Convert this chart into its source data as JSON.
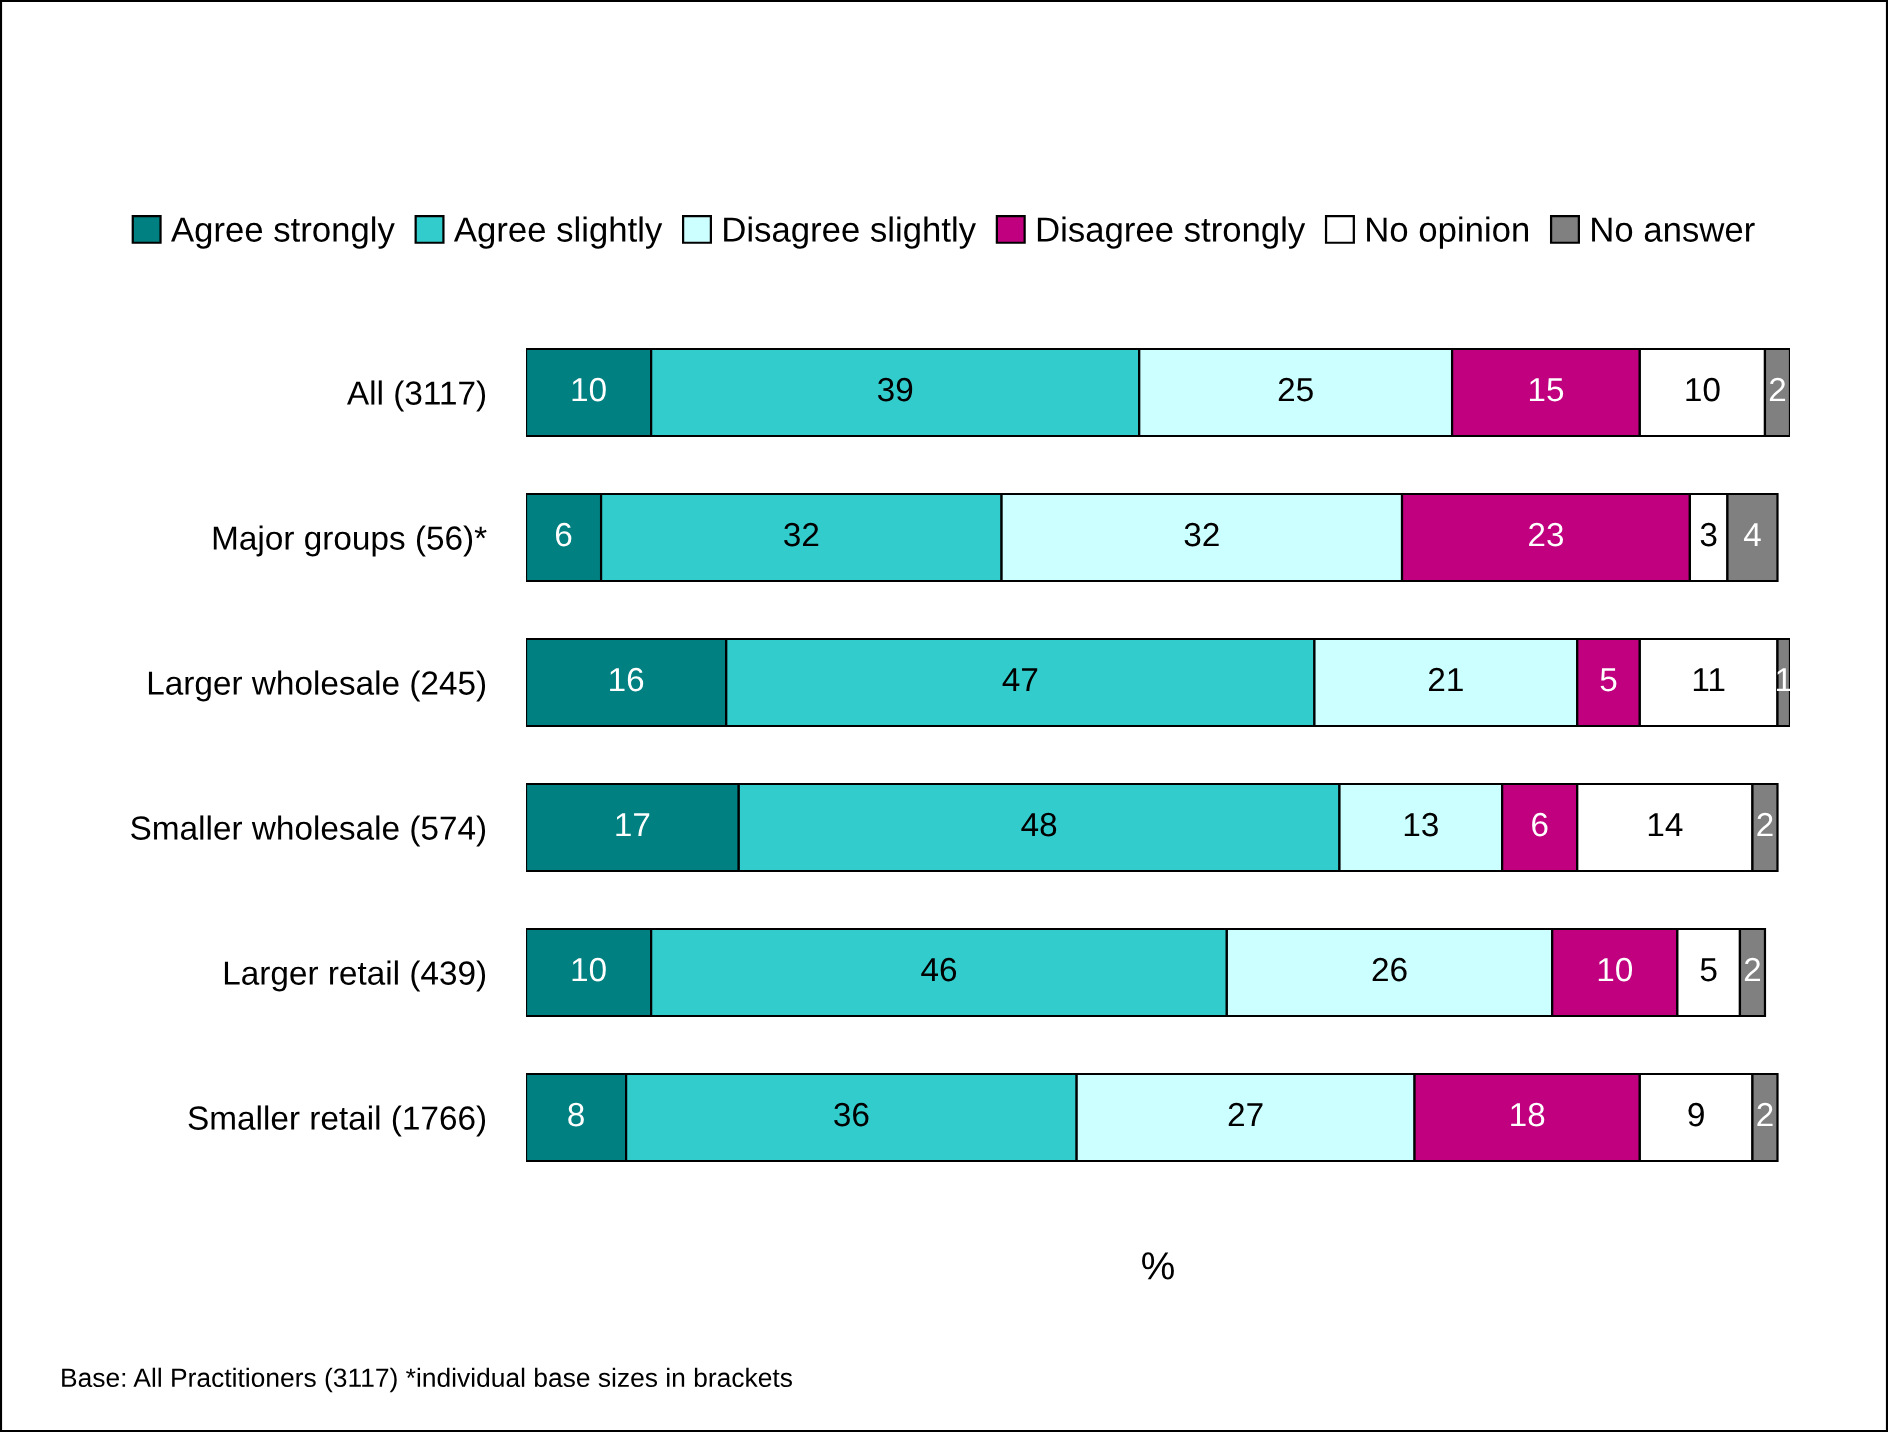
{
  "chart_data": {
    "type": "bar",
    "orientation": "horizontal",
    "stacked": true,
    "data_labels": true,
    "legend": "top",
    "grid": false,
    "xlabel": "%",
    "categories": [
      "All (3117)",
      "Major groups (56)*",
      "Larger wholesale (245)",
      "Smaller wholesale (574)",
      "Larger retail (439)",
      "Smaller retail (1766)"
    ],
    "series": [
      {
        "name": "Agree strongly",
        "color": "#008080",
        "values": [
          10,
          6,
          16,
          17,
          10,
          8
        ]
      },
      {
        "name": "Agree slightly",
        "color": "#33cccc",
        "values": [
          39,
          32,
          47,
          48,
          46,
          36
        ]
      },
      {
        "name": "Disagree slightly",
        "color": "#ccffff",
        "values": [
          25,
          32,
          21,
          13,
          26,
          27
        ]
      },
      {
        "name": "Disagree strongly",
        "color": "#c0007f",
        "values": [
          15,
          23,
          5,
          6,
          10,
          18
        ]
      },
      {
        "name": "No opinion",
        "color": "#ffffff",
        "values": [
          10,
          3,
          11,
          14,
          5,
          9
        ]
      },
      {
        "name": "No answer",
        "color": "#808080",
        "values": [
          2,
          4,
          1,
          2,
          2,
          2
        ]
      }
    ],
    "annotations": [
      "Base: All Practitioners (3117) *individual base sizes in brackets"
    ]
  }
}
